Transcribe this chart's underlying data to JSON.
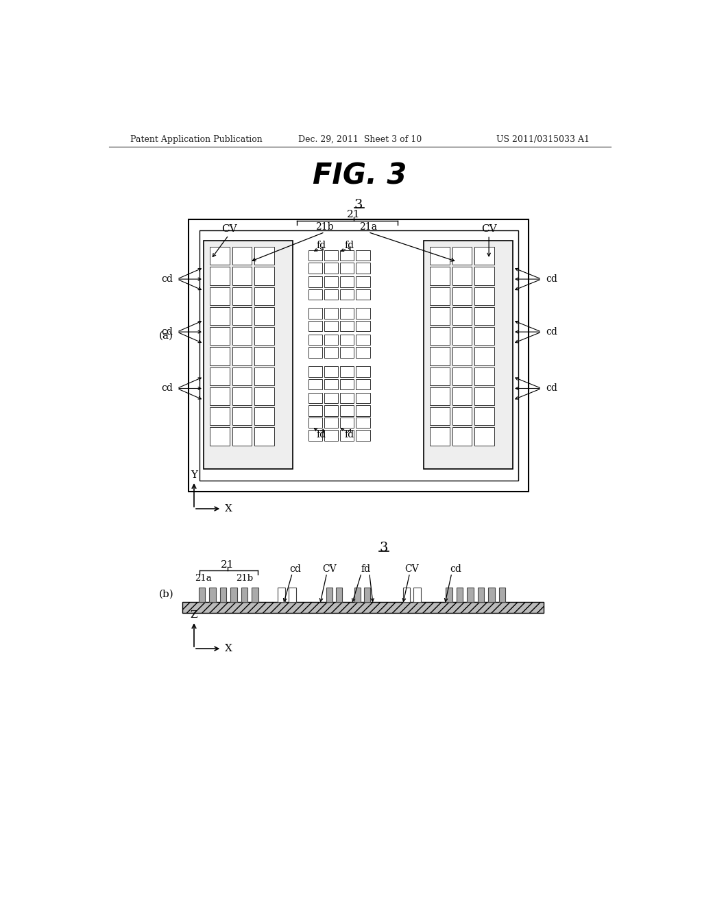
{
  "title": "FIG. 3",
  "header_left": "Patent Application Publication",
  "header_center": "Dec. 29, 2011  Sheet 3 of 10",
  "header_right": "US 2011/0315033 A1",
  "bg_color": "#ffffff",
  "text_color": "#000000",
  "label_3": "3",
  "label_21": "21",
  "label_21a": "21a",
  "label_21b": "21b",
  "label_CV": "CV",
  "label_cd": "cd",
  "label_fd": "fd",
  "label_a": "(a)",
  "label_b": "(b)",
  "label_Y": "Y",
  "label_X": "X",
  "label_Z": "Z"
}
